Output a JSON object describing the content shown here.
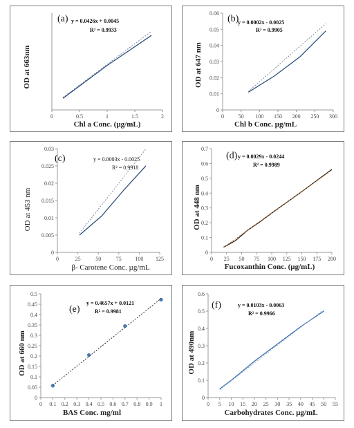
{
  "figure": {
    "panels": [
      {
        "id": "a",
        "label": "(a)",
        "xlabel": "Chl a Conc. (µg/mL)",
        "ylabel": "OD at 663nm",
        "equation": "y = 0.0426x + 0.0045",
        "r2": "R² = 0.9933"
      },
      {
        "id": "b",
        "label": "(b)",
        "xlabel": "Chl b  Conc. µg/mL",
        "ylabel": "OD at 647 nm",
        "equation": "y = 0.0002x - 0.0025",
        "r2": "R² = 0.9905"
      },
      {
        "id": "c",
        "label": "(c)",
        "xlabel": "β- Carotene Conc. µg/mL",
        "ylabel": "OD at 453 nm",
        "equation": "y = 0.0003x - 0.0025",
        "r2": "R² = 0.9918"
      },
      {
        "id": "d",
        "label": "(d)",
        "xlabel": "Fucoxanthin Conc. (µg/mL)",
        "ylabel": "OD at 448 nm",
        "equation": "y = 0.0029x - 0.0244",
        "r2": "R² = 0.9989"
      },
      {
        "id": "e",
        "label": "(e)",
        "xlabel": "BAS Conc. mg/ml",
        "ylabel": "OD at 660 nm",
        "equation": "y = 0.4657x + 0.0121",
        "r2": "R² = 0.9981"
      },
      {
        "id": "f",
        "label": "(f)",
        "xlabel": "Carbohydrates Conc. µg/mL",
        "ylabel": "OD at 490nm",
        "equation": "y = 0.0103x - 0.0063",
        "r2": "R² = 0.9966"
      }
    ]
  },
  "chart_data": [
    {
      "type": "line",
      "label": "(a)",
      "xlim": [
        0,
        2
      ],
      "ylim": [
        0,
        0.1
      ],
      "xticks": [
        "0",
        "0.5",
        "1",
        "1.5",
        "2"
      ],
      "yticks": [],
      "colors": {
        "data": "#2e4f7a",
        "trend": "#7d8da6"
      },
      "series": [
        {
          "x": [
            0.2,
            1.0,
            1.8
          ],
          "y": [
            0.012,
            0.046,
            0.077
          ]
        },
        {
          "x": [
            0.2,
            1.8
          ],
          "y": [
            0.013,
            0.0812
          ],
          "trendline": true
        }
      ]
    },
    {
      "type": "line",
      "label": "(b)",
      "xlim": [
        0,
        300
      ],
      "ylim": [
        0,
        0.06
      ],
      "xticks": [
        "0",
        "50",
        "100",
        "150",
        "200",
        "250",
        "300"
      ],
      "yticks": [
        "0",
        "0.01",
        "0.02",
        "0.03",
        "0.04",
        "0.05",
        "0.06"
      ],
      "colors": {
        "data": "#2e4f7a",
        "trend": "#7d8da6"
      },
      "series": [
        {
          "x": [
            70,
            140,
            210,
            280
          ],
          "y": [
            0.011,
            0.021,
            0.033,
            0.049
          ]
        },
        {
          "x": [
            70,
            280
          ],
          "y": [
            0.0115,
            0.0535
          ],
          "trendline": true
        }
      ]
    },
    {
      "type": "line",
      "label": "(c)",
      "xlim": [
        0,
        125
      ],
      "ylim": [
        0,
        0.03
      ],
      "xticks": [
        "0",
        "25",
        "50",
        "75",
        "100",
        "125"
      ],
      "yticks": [
        "0",
        "0.005",
        "0.01",
        "0.015",
        "0.02",
        "0.025",
        "0.03"
      ],
      "colors": {
        "data": "#2e4f7a",
        "trend": "#7d8da6"
      },
      "series": [
        {
          "x": [
            27,
            54,
            81,
            108
          ],
          "y": [
            0.005,
            0.0105,
            0.018,
            0.025
          ]
        },
        {
          "x": [
            27,
            108
          ],
          "y": [
            0.0056,
            0.0299
          ],
          "trendline": true
        }
      ]
    },
    {
      "type": "line",
      "label": "(d)",
      "xlim": [
        0,
        200
      ],
      "ylim": [
        0,
        0.7
      ],
      "xticks": [
        "0",
        "25",
        "50",
        "75",
        "100",
        "125",
        "150",
        "175",
        "200"
      ],
      "yticks": [
        "0",
        "0.1",
        "0.2",
        "0.3",
        "0.4",
        "0.5",
        "0.6",
        "0.7"
      ],
      "colors": {
        "data": "#1c1c1c",
        "trend": "#c0701d"
      },
      "series": [
        {
          "x": [
            20,
            40,
            60,
            80,
            100,
            150,
            200
          ],
          "y": [
            0.035,
            0.08,
            0.15,
            0.205,
            0.265,
            0.41,
            0.56
          ]
        },
        {
          "x": [
            20,
            200
          ],
          "y": [
            0.0336,
            0.5556
          ],
          "trendline": true
        }
      ]
    },
    {
      "type": "scatter",
      "label": "(e)",
      "xlim": [
        0,
        1
      ],
      "ylim": [
        0,
        0.5
      ],
      "xticks": [
        "0",
        "0.1",
        "0.2",
        "0.3",
        "0.4",
        "0.5",
        "0.6",
        "0.7",
        "0.8",
        "0.9",
        "1"
      ],
      "yticks": [
        "0",
        "0.05",
        "0.1",
        "0.15",
        "0.2",
        "0.25",
        "0.3",
        "0.35",
        "0.4",
        "0.45",
        "0.5"
      ],
      "colors": {
        "data": "#4a7ab5",
        "trend": "#2b2b2b"
      },
      "series": [
        {
          "x": [
            0.1,
            0.4,
            0.7,
            1.0
          ],
          "y": [
            0.057,
            0.205,
            0.345,
            0.472
          ],
          "markers": true
        },
        {
          "x": [
            0.1,
            1.0
          ],
          "y": [
            0.0587,
            0.4778
          ],
          "trendline": true
        }
      ]
    },
    {
      "type": "line",
      "label": "(f)",
      "xlim": [
        0,
        55
      ],
      "ylim": [
        0,
        0.6
      ],
      "xticks": [
        "0",
        "5",
        "10",
        "15",
        "20",
        "25",
        "30",
        "35",
        "40",
        "45",
        "50",
        "55"
      ],
      "yticks": [
        "0",
        "0.1",
        "0.2",
        "0.3",
        "0.4",
        "0.5",
        "0.6"
      ],
      "colors": {
        "data": "#3b6ea8",
        "trend": "#8fb0d6"
      },
      "series": [
        {
          "x": [
            5,
            10,
            20,
            30,
            40,
            50
          ],
          "y": [
            0.05,
            0.1,
            0.21,
            0.31,
            0.41,
            0.5
          ]
        },
        {
          "x": [
            5,
            50
          ],
          "y": [
            0.045,
            0.509
          ],
          "trendline": true
        }
      ]
    }
  ]
}
